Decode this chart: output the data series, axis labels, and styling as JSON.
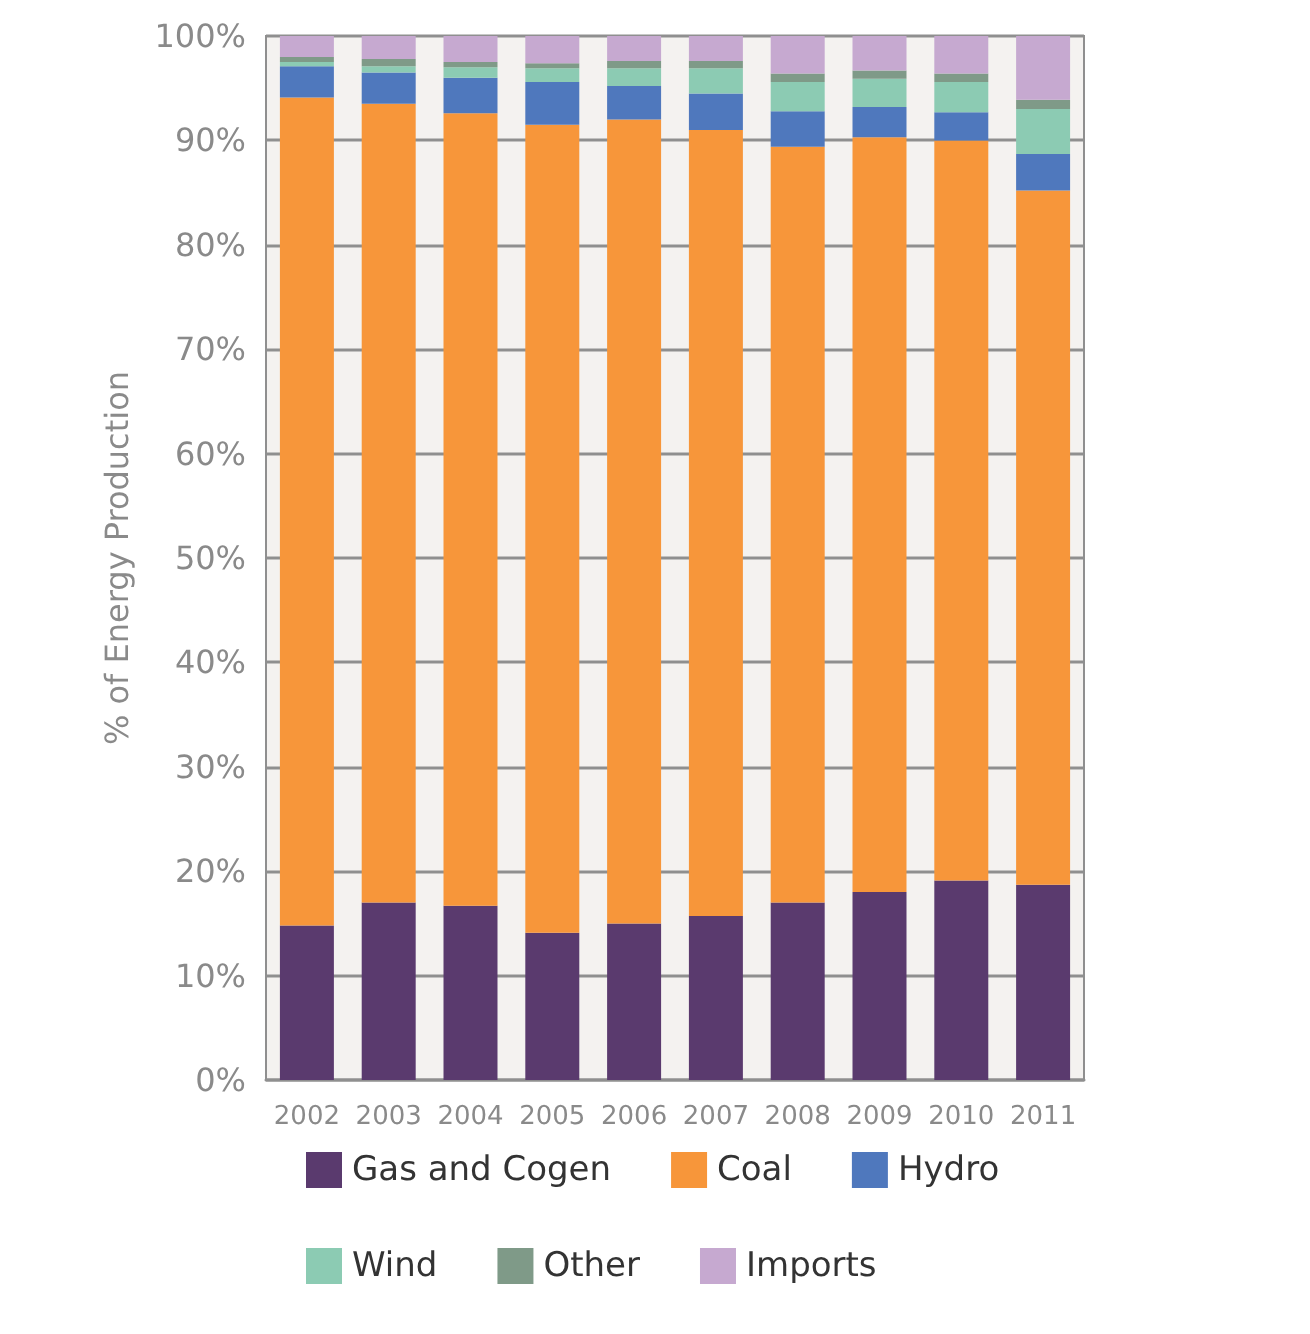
{
  "chart_data": {
    "type": "bar",
    "stacked": true,
    "ylabel": "% of Energy Production",
    "categories": [
      "2002",
      "2003",
      "2004",
      "2005",
      "2006",
      "2007",
      "2008",
      "2009",
      "2010",
      "2011"
    ],
    "series": [
      {
        "name": "Gas and Cogen",
        "color": "#5a3a6e",
        "values": [
          14.8,
          17.0,
          16.7,
          14.1,
          15.0,
          15.7,
          17.0,
          18.0,
          19.1,
          18.7
        ]
      },
      {
        "name": "Coal",
        "color": "#f7963a",
        "values": [
          79.3,
          76.5,
          75.9,
          77.4,
          77.0,
          75.3,
          72.4,
          72.3,
          70.9,
          66.5
        ]
      },
      {
        "name": "Hydro",
        "color": "#4f78bd",
        "values": [
          3.0,
          3.0,
          3.4,
          4.1,
          3.2,
          3.5,
          3.4,
          2.9,
          2.7,
          3.5
        ]
      },
      {
        "name": "Wind",
        "color": "#8ccbb3",
        "values": [
          0.4,
          0.6,
          1.0,
          1.3,
          1.7,
          2.4,
          2.8,
          2.7,
          2.9,
          4.3
        ]
      },
      {
        "name": "Other",
        "color": "#7f9a88",
        "values": [
          0.5,
          0.7,
          0.5,
          0.5,
          0.7,
          0.7,
          0.8,
          0.8,
          0.8,
          0.9
        ]
      },
      {
        "name": "Imports",
        "color": "#c6a9d0",
        "values": [
          2.0,
          2.2,
          2.5,
          2.6,
          2.4,
          2.4,
          3.6,
          3.3,
          3.6,
          6.1
        ]
      }
    ],
    "ylim": [
      0,
      100
    ],
    "yticks": [
      {
        "value": 0,
        "label": "0%"
      },
      {
        "value": 10,
        "label": "10%"
      },
      {
        "value": 20,
        "label": "20%"
      },
      {
        "value": 30,
        "label": "30%"
      },
      {
        "value": 40,
        "label": "40%"
      },
      {
        "value": 50,
        "label": "50%"
      },
      {
        "value": 60,
        "label": "60%"
      },
      {
        "value": 70,
        "label": "70%"
      },
      {
        "value": 80,
        "label": "80%"
      },
      {
        "value": 90,
        "label": "90%"
      },
      {
        "value": 100,
        "label": "100%"
      }
    ],
    "grid": "y",
    "legend": "bottom"
  }
}
